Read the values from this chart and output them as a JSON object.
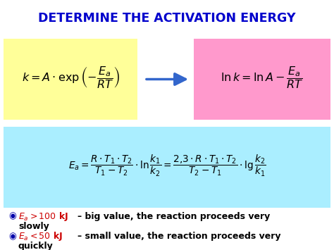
{
  "title": "DETERMINE THE ACTIVATION ENERGY",
  "title_color": "#0000CC",
  "bg_color": "#FFFFFF",
  "box1_color": "#FFFF99",
  "box2_color": "#FF99CC",
  "box3_color": "#AAEEFF",
  "formula1": "$k = A \\cdot \\exp\\left(-\\dfrac{E_a}{RT}\\right)$",
  "formula2": "$\\ln k = \\ln A - \\dfrac{E_a}{RT}$",
  "formula3": "$E_a = \\dfrac{R \\cdot T_1 \\cdot T_2}{T_1 - T_2} \\cdot \\ln\\dfrac{k_1}{k_2} = \\dfrac{2{,}3 \\cdot R \\cdot T_1 \\cdot T_2}{T_2 - T_1} \\cdot \\lg\\dfrac{k_2}{k_1}$",
  "bullet1_red": "$E_a > 100$ kJ",
  "bullet1_black": "– big value, the reaction proceeds very",
  "bullet1_line2": "slowly",
  "bullet2_red": "$E_a < 50$ kJ",
  "bullet2_black": "– small value, the reaction proceeds very",
  "bullet2_line2": "quickly",
  "arrow_color": "#3366CC",
  "bullet_dot_color": "#0000AA",
  "red_color": "#CC0000",
  "black_color": "#000000",
  "bold_black": "#000000"
}
